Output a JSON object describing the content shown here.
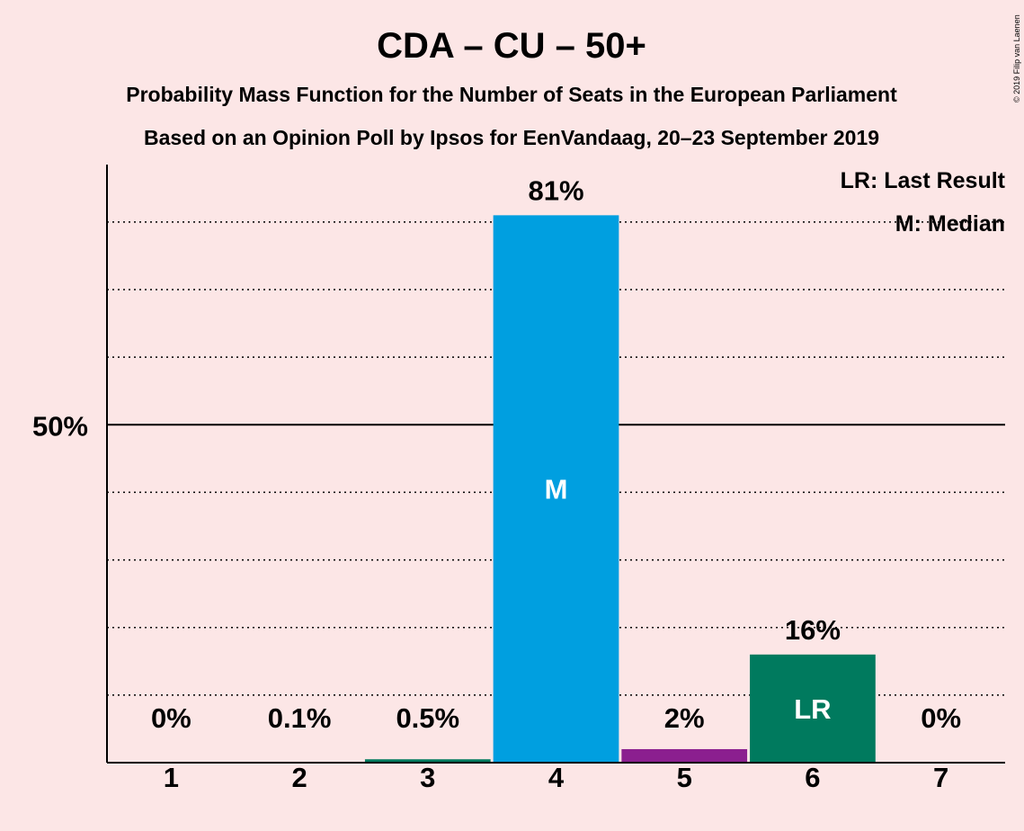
{
  "title": "CDA – CU – 50+",
  "subtitle1": "Probability Mass Function for the Number of Seats in the European Parliament",
  "subtitle2": "Based on an Opinion Poll by Ipsos for EenVandaag, 20–23 September 2019",
  "copyright": "© 2019 Filip van Laenen",
  "legend": {
    "last_result": "LR: Last Result",
    "median": "M: Median"
  },
  "chart_data": {
    "type": "bar",
    "title": "CDA – CU – 50+",
    "xlabel": "",
    "ylabel": "",
    "categories": [
      "1",
      "2",
      "3",
      "4",
      "5",
      "6",
      "7"
    ],
    "values": [
      0,
      0.1,
      0.5,
      81,
      2,
      16,
      0
    ],
    "value_labels": [
      "0%",
      "0.1%",
      "0.5%",
      "81%",
      "2%",
      "16%",
      "0%"
    ],
    "bar_labels": [
      "",
      "",
      "",
      "M",
      "",
      "LR",
      ""
    ],
    "colors": [
      "#8b1f8f",
      "#8b1f8f",
      "#007a5e",
      "#009fe0",
      "#8b1f8f",
      "#007a5e",
      "#8b1f8f"
    ],
    "ylim": [
      0,
      88.5
    ],
    "y_tick_labels": [
      {
        "value": 50,
        "label": "50%"
      }
    ],
    "gridlines_dotted": [
      10,
      20,
      30,
      40,
      60,
      70,
      80
    ],
    "gridline_solid": 50,
    "legend_placement": "top-right"
  }
}
